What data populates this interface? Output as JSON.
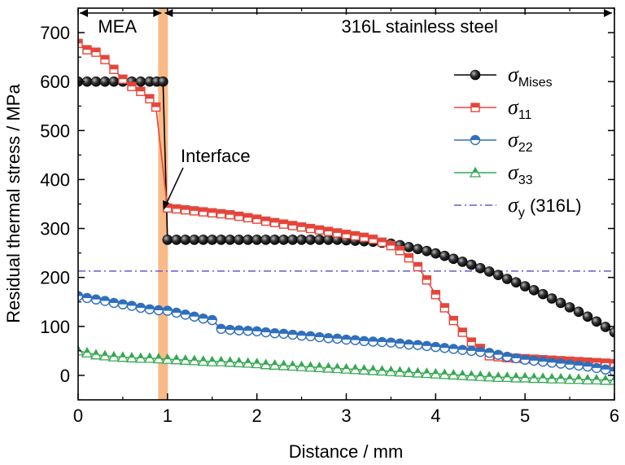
{
  "chart_data": {
    "type": "line",
    "xlabel": "Distance / mm",
    "ylabel": "Residual thermal stress / MPa",
    "xlim": [
      0,
      6
    ],
    "ylim": [
      -50,
      750
    ],
    "x_ticks": [
      "0",
      "1",
      "2",
      "3",
      "4",
      "5",
      "6"
    ],
    "y_ticks": [
      "0",
      "100",
      "200",
      "300",
      "400",
      "500",
      "600",
      "700"
    ],
    "grid": false,
    "legend_position": "right",
    "regions": [
      {
        "label": "MEA",
        "from": 0,
        "to": 0.95
      },
      {
        "label": "316L stainless steel",
        "from": 0.95,
        "to": 6
      }
    ],
    "interface": {
      "label": "Interface",
      "x": 0.95
    },
    "series": [
      {
        "name": "σMises",
        "symbol": "σ",
        "subscript": "Mises",
        "color": "#000000",
        "marker": "sphere",
        "x": [
          0,
          0.1,
          0.2,
          0.3,
          0.4,
          0.5,
          0.6,
          0.7,
          0.8,
          0.88,
          0.95,
          1.0,
          1.1,
          1.2,
          1.3,
          1.4,
          1.5,
          1.6,
          1.7,
          1.8,
          1.9,
          2.0,
          2.1,
          2.2,
          2.3,
          2.4,
          2.5,
          2.6,
          2.7,
          2.8,
          2.9,
          3.0,
          3.1,
          3.2,
          3.3,
          3.4,
          3.5,
          3.6,
          3.7,
          3.8,
          3.9,
          4.0,
          4.1,
          4.2,
          4.3,
          4.4,
          4.5,
          4.6,
          4.7,
          4.8,
          4.9,
          5.0,
          5.1,
          5.2,
          5.3,
          5.4,
          5.5,
          5.6,
          5.7,
          5.8,
          5.9,
          6.0
        ],
        "y": [
          600,
          600,
          600,
          600,
          600,
          600,
          600,
          600,
          600,
          600,
          600,
          277,
          277,
          277,
          277,
          277,
          277,
          277,
          277,
          277,
          277,
          277,
          277,
          277,
          277,
          277,
          277,
          277,
          277,
          277,
          277,
          276,
          275,
          274,
          273,
          271,
          269,
          266,
          262,
          258,
          254,
          249,
          244,
          238,
          232,
          226,
          219,
          212,
          205,
          197,
          190,
          182,
          174,
          166,
          157,
          148,
          139,
          130,
          120,
          110,
          99,
          88
        ]
      },
      {
        "name": "σ11",
        "symbol": "σ",
        "subscript": "11",
        "color": "#e5463b",
        "marker": "square",
        "x": [
          0,
          0.1,
          0.2,
          0.3,
          0.4,
          0.5,
          0.6,
          0.7,
          0.8,
          0.87,
          1.0,
          1.1,
          1.2,
          1.3,
          1.4,
          1.5,
          1.6,
          1.7,
          1.8,
          1.9,
          2.0,
          2.1,
          2.2,
          2.3,
          2.4,
          2.5,
          2.6,
          2.7,
          2.8,
          2.9,
          3.0,
          3.1,
          3.2,
          3.3,
          3.4,
          3.5,
          3.6,
          3.7,
          3.8,
          3.9,
          4.0,
          4.1,
          4.2,
          4.3,
          4.4,
          4.5,
          4.6,
          4.7,
          4.8,
          4.9,
          5.0,
          5.1,
          5.2,
          5.3,
          5.4,
          5.5,
          5.6,
          5.7,
          5.8,
          5.9,
          6.0
        ],
        "y": [
          678,
          665,
          660,
          645,
          625,
          605,
          590,
          580,
          565,
          548,
          342,
          340,
          338,
          336,
          334,
          332,
          330,
          328,
          325,
          322,
          319,
          315,
          312,
          309,
          306,
          303,
          300,
          297,
          294,
          291,
          288,
          285,
          282,
          278,
          272,
          265,
          255,
          240,
          222,
          195,
          165,
          138,
          112,
          88,
          68,
          55,
          40,
          38,
          36,
          35,
          34,
          33,
          32,
          31,
          30,
          29,
          28,
          27,
          26,
          25,
          24
        ]
      },
      {
        "name": "σ22",
        "symbol": "σ",
        "subscript": "22",
        "color": "#2f6fbd",
        "marker": "half-circle",
        "x": [
          0,
          0.1,
          0.2,
          0.3,
          0.4,
          0.5,
          0.6,
          0.7,
          0.8,
          0.9,
          1.0,
          1.1,
          1.2,
          1.3,
          1.4,
          1.5,
          1.6,
          1.7,
          1.8,
          1.9,
          2.0,
          2.1,
          2.2,
          2.3,
          2.4,
          2.5,
          2.6,
          2.7,
          2.8,
          2.9,
          3.0,
          3.1,
          3.2,
          3.3,
          3.4,
          3.5,
          3.6,
          3.7,
          3.8,
          3.9,
          4.0,
          4.1,
          4.2,
          4.3,
          4.4,
          4.5,
          4.6,
          4.7,
          4.8,
          4.9,
          5.0,
          5.1,
          5.2,
          5.3,
          5.4,
          5.5,
          5.6,
          5.7,
          5.8,
          5.9,
          6.0
        ],
        "y": [
          162,
          158,
          155,
          152,
          148,
          145,
          142,
          138,
          135,
          133,
          132,
          128,
          124,
          120,
          116,
          113,
          95,
          93,
          92,
          91,
          90,
          88,
          86,
          85,
          83,
          81,
          80,
          78,
          76,
          75,
          73,
          72,
          70,
          69,
          68,
          67,
          65,
          63,
          62,
          60,
          58,
          56,
          54,
          52,
          50,
          48,
          46,
          42,
          38,
          35,
          32,
          30,
          28,
          26,
          24,
          22,
          20,
          18,
          15,
          12,
          8
        ]
      },
      {
        "name": "σ33",
        "symbol": "σ",
        "subscript": "33",
        "color": "#35a853",
        "marker": "half-triangle",
        "x": [
          0,
          0.1,
          0.2,
          0.3,
          0.4,
          0.5,
          0.6,
          0.7,
          0.8,
          0.9,
          1.0,
          1.1,
          1.2,
          1.3,
          1.4,
          1.5,
          1.6,
          1.7,
          1.8,
          1.9,
          2.0,
          2.1,
          2.2,
          2.3,
          2.4,
          2.5,
          2.6,
          2.7,
          2.8,
          2.9,
          3.0,
          3.1,
          3.2,
          3.3,
          3.4,
          3.5,
          3.6,
          3.7,
          3.8,
          3.9,
          4.0,
          4.1,
          4.2,
          4.3,
          4.4,
          4.5,
          4.6,
          4.7,
          4.8,
          4.9,
          5.0,
          5.1,
          5.2,
          5.3,
          5.4,
          5.5,
          5.6,
          5.7,
          5.8,
          5.9,
          6.0
        ],
        "y": [
          50,
          46,
          42,
          40,
          38,
          37,
          36,
          35,
          35,
          34,
          33,
          32,
          31,
          30,
          29,
          28,
          28,
          27,
          26,
          25,
          24,
          22,
          21,
          20,
          19,
          18,
          17,
          16,
          15,
          14,
          13,
          12,
          11,
          10,
          9,
          8,
          7,
          6,
          5,
          4,
          3,
          2,
          1,
          0,
          -1,
          -2,
          -3,
          -4,
          -4,
          -5,
          -5,
          -6,
          -6,
          -7,
          -7,
          -8,
          -8,
          -9,
          -9,
          -10,
          -10
        ]
      },
      {
        "name": "σy (316L)",
        "symbol": "σ",
        "subscript": "y",
        "suffix": " (316L)",
        "color": "#6a5acd",
        "marker": "none",
        "style": "dash-dot",
        "x": [
          0,
          6
        ],
        "y": [
          213,
          213
        ]
      }
    ]
  }
}
